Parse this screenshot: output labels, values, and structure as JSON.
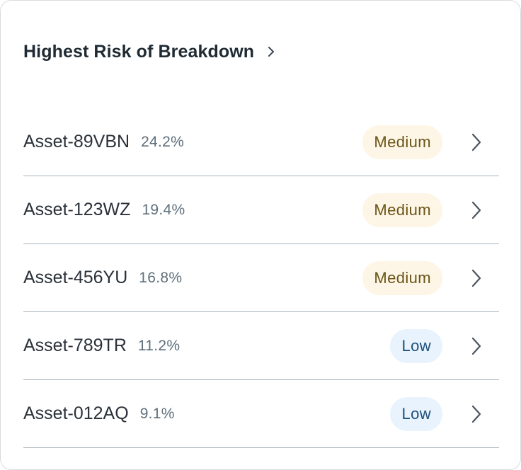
{
  "card": {
    "title": "Highest Risk of Breakdown",
    "title_icon": "chevron-right-icon"
  },
  "assets": [
    {
      "name": "Asset-89VBN",
      "risk_pct": "24.2%",
      "level": "Medium",
      "level_key": "medium"
    },
    {
      "name": "Asset-123WZ",
      "risk_pct": "19.4%",
      "level": "Medium",
      "level_key": "medium"
    },
    {
      "name": "Asset-456YU",
      "risk_pct": "16.8%",
      "level": "Medium",
      "level_key": "medium"
    },
    {
      "name": "Asset-789TR",
      "risk_pct": "11.2%",
      "level": "Low",
      "level_key": "low"
    },
    {
      "name": "Asset-012AQ",
      "risk_pct": "9.1%",
      "level": "Low",
      "level_key": "low"
    }
  ],
  "row_icon": "chevron-right-icon",
  "colors": {
    "medium_bg": "#fdf6e6",
    "medium_text": "#6a5416",
    "low_bg": "#e8f3fd",
    "low_text": "#1c4f7a",
    "divider": "#a9b4bd"
  }
}
